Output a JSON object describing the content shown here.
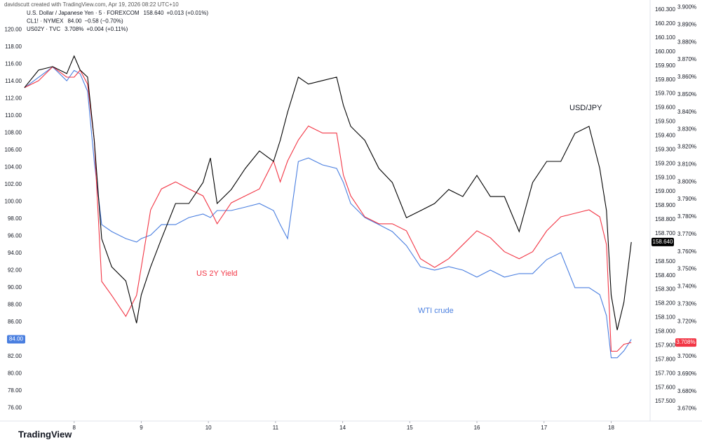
{
  "chart_data": {
    "type": "line",
    "credit": "davidscutt created with TradingView.com, Apr 19, 2026 08:22 UTC+10",
    "brand": "TradingView",
    "annotations": [
      "USD/JPY",
      "US 2Y Yield",
      "WTI crude"
    ],
    "x": [
      0.26,
      0.47,
      0.68,
      0.89,
      1.0,
      1.09,
      1.2,
      1.3,
      1.41,
      1.56,
      1.77,
      1.93,
      2.0,
      2.14,
      2.3,
      2.51,
      2.71,
      2.92,
      3.03,
      3.13,
      3.34,
      3.55,
      3.76,
      3.97,
      4.07,
      4.18,
      4.34,
      4.49,
      4.7,
      4.91,
      5.01,
      5.12,
      5.33,
      5.54,
      5.74,
      5.95,
      6.16,
      6.37,
      6.58,
      6.79,
      7.0,
      7.2,
      7.41,
      7.63,
      7.83,
      8.04,
      8.25,
      8.46,
      8.67,
      8.83,
      8.93,
      9.0,
      9.09,
      9.19,
      9.3
    ],
    "xlim": [
      0,
      9.58
    ],
    "xticks": [
      {
        "value": 1,
        "label": "8"
      },
      {
        "value": 2,
        "label": "9"
      },
      {
        "value": 3,
        "label": "10"
      },
      {
        "value": 4,
        "label": "11"
      },
      {
        "value": 5,
        "label": "14"
      },
      {
        "value": 6,
        "label": "15"
      },
      {
        "value": 7,
        "label": "16"
      },
      {
        "value": 8,
        "label": "17"
      },
      {
        "value": 9,
        "label": "18"
      }
    ],
    "ylim": [
      74.5,
      122.8
    ],
    "yticks": [
      {
        "value": 76,
        "label": "76.00"
      },
      {
        "value": 78,
        "label": "78.00"
      },
      {
        "value": 80,
        "label": "80.00"
      },
      {
        "value": 82,
        "label": "82.00"
      },
      {
        "value": 84,
        "label": "84.00"
      },
      {
        "value": 86,
        "label": "86.00"
      },
      {
        "value": 88,
        "label": "88.00"
      },
      {
        "value": 90,
        "label": "90.00"
      },
      {
        "value": 92,
        "label": "92.00"
      },
      {
        "value": 94,
        "label": "94.00"
      },
      {
        "value": 96,
        "label": "96.00"
      },
      {
        "value": 98,
        "label": "98.00"
      },
      {
        "value": 100,
        "label": "100.00"
      },
      {
        "value": 102,
        "label": "102.00"
      },
      {
        "value": 104,
        "label": "104.00"
      },
      {
        "value": 106,
        "label": "106.00"
      },
      {
        "value": 108,
        "label": "108.00"
      },
      {
        "value": 110,
        "label": "110.00"
      },
      {
        "value": 112,
        "label": "112.00"
      },
      {
        "value": 114,
        "label": "114.00"
      },
      {
        "value": 116,
        "label": "116.00"
      },
      {
        "value": 118,
        "label": "118.00"
      },
      {
        "value": 120,
        "label": "120.00"
      }
    ],
    "y2lim": [
      157.36,
      160.33
    ],
    "y2ticks": [
      {
        "value": 157.5,
        "label": "157.500"
      },
      {
        "value": 157.6,
        "label": "157.600"
      },
      {
        "value": 157.7,
        "label": "157.700"
      },
      {
        "value": 157.8,
        "label": "157.800"
      },
      {
        "value": 157.9,
        "label": "157.900"
      },
      {
        "value": 158,
        "label": "158.000"
      },
      {
        "value": 158.1,
        "label": "158.100"
      },
      {
        "value": 158.2,
        "label": "158.200"
      },
      {
        "value": 158.3,
        "label": "158.300"
      },
      {
        "value": 158.4,
        "label": "158.400"
      },
      {
        "value": 158.5,
        "label": "158.500"
      },
      {
        "value": 158.7,
        "label": "158.700"
      },
      {
        "value": 158.8,
        "label": "158.800"
      },
      {
        "value": 158.9,
        "label": "158.900"
      },
      {
        "value": 159,
        "label": "159.000"
      },
      {
        "value": 159.1,
        "label": "159.100"
      },
      {
        "value": 159.2,
        "label": "159.200"
      },
      {
        "value": 159.3,
        "label": "159.300"
      },
      {
        "value": 159.4,
        "label": "159.400"
      },
      {
        "value": 159.5,
        "label": "159.500"
      },
      {
        "value": 159.6,
        "label": "159.600"
      },
      {
        "value": 159.7,
        "label": "159.700"
      },
      {
        "value": 159.8,
        "label": "159.800"
      },
      {
        "value": 159.9,
        "label": "159.900"
      },
      {
        "value": 160,
        "label": "160.000"
      },
      {
        "value": 160.1,
        "label": "160.100"
      },
      {
        "value": 160.2,
        "label": "160.200"
      },
      {
        "value": 160.3,
        "label": "160.300"
      }
    ],
    "y3lim": [
      3.663,
      3.901
    ],
    "y3ticks": [
      {
        "value": 3.67,
        "label": "3.670%"
      },
      {
        "value": 3.68,
        "label": "3.680%"
      },
      {
        "value": 3.69,
        "label": "3.690%"
      },
      {
        "value": 3.7,
        "label": "3.700%"
      },
      {
        "value": 3.72,
        "label": "3.720%"
      },
      {
        "value": 3.73,
        "label": "3.730%"
      },
      {
        "value": 3.74,
        "label": "3.740%"
      },
      {
        "value": 3.75,
        "label": "3.750%"
      },
      {
        "value": 3.76,
        "label": "3.760%"
      },
      {
        "value": 3.77,
        "label": "3.770%"
      },
      {
        "value": 3.78,
        "label": "3.780%"
      },
      {
        "value": 3.79,
        "label": "3.790%"
      },
      {
        "value": 3.8,
        "label": "3.800%"
      },
      {
        "value": 3.81,
        "label": "3.810%"
      },
      {
        "value": 3.82,
        "label": "3.820%"
      },
      {
        "value": 3.83,
        "label": "3.830%"
      },
      {
        "value": 3.84,
        "label": "3.840%"
      },
      {
        "value": 3.85,
        "label": "3.850%"
      },
      {
        "value": 3.86,
        "label": "3.860%"
      },
      {
        "value": 3.87,
        "label": "3.870%"
      },
      {
        "value": 3.88,
        "label": "3.880%"
      },
      {
        "value": 3.89,
        "label": "3.890%"
      },
      {
        "value": 3.9,
        "label": "3.900%"
      }
    ],
    "series": [
      {
        "name": "U.S. Dollar / Japanese Yen · 5 · FOREXCOM",
        "last_value_label": "158.640",
        "change": "+0.013 (+0.01%)",
        "color": "#000000",
        "axis": "y2",
        "values": [
          159.744,
          159.869,
          159.894,
          159.844,
          159.97,
          159.869,
          159.819,
          159.367,
          158.663,
          158.462,
          158.362,
          158.06,
          158.261,
          158.462,
          158.663,
          158.915,
          158.915,
          159.065,
          159.241,
          158.915,
          159.015,
          159.166,
          159.291,
          159.216,
          159.367,
          159.568,
          159.819,
          159.769,
          159.794,
          159.819,
          159.618,
          159.467,
          159.367,
          159.166,
          159.065,
          158.814,
          158.864,
          158.915,
          159.015,
          158.965,
          159.116,
          158.965,
          158.965,
          158.714,
          159.065,
          159.216,
          159.216,
          159.417,
          159.467,
          159.166,
          158.864,
          158.261,
          158.01,
          158.211,
          158.64
        ]
      },
      {
        "name": "CL1! · NYMEX",
        "last_value_label": "84.00",
        "change": "−0.58 (−0.70%)",
        "color": "#4a7fe0",
        "axis": "y",
        "values": [
          113.24,
          114.46,
          115.68,
          114.05,
          115.27,
          114.87,
          112.83,
          104.68,
          97.34,
          96.53,
          95.71,
          95.31,
          95.71,
          96.12,
          97.34,
          97.34,
          98.16,
          98.57,
          98.16,
          98.98,
          98.98,
          99.38,
          99.79,
          98.98,
          97.34,
          95.71,
          104.68,
          105.09,
          104.28,
          103.87,
          102.24,
          99.79,
          98.16,
          97.34,
          96.53,
          94.9,
          92.45,
          92.05,
          92.45,
          92.05,
          91.23,
          92.05,
          91.23,
          91.64,
          91.64,
          93.27,
          94.08,
          90.01,
          90.01,
          89.19,
          86.75,
          81.86,
          81.86,
          82.67,
          84.0
        ]
      },
      {
        "name": "US02Y · TVC",
        "last_value_label": "3.708%",
        "change": "+0.004 (+0.11%)",
        "color": "#f23645",
        "axis": "y3",
        "values": [
          3.854,
          3.858,
          3.866,
          3.86,
          3.86,
          3.864,
          3.856,
          3.824,
          3.743,
          3.735,
          3.723,
          3.735,
          3.751,
          3.784,
          3.796,
          3.8,
          3.796,
          3.792,
          3.784,
          3.776,
          3.788,
          3.792,
          3.796,
          3.812,
          3.8,
          3.812,
          3.824,
          3.832,
          3.828,
          3.828,
          3.804,
          3.792,
          3.78,
          3.776,
          3.776,
          3.772,
          3.756,
          3.751,
          3.756,
          3.764,
          3.772,
          3.768,
          3.76,
          3.756,
          3.76,
          3.772,
          3.78,
          3.782,
          3.784,
          3.78,
          3.764,
          3.703,
          3.703,
          3.707,
          3.708
        ]
      }
    ]
  }
}
